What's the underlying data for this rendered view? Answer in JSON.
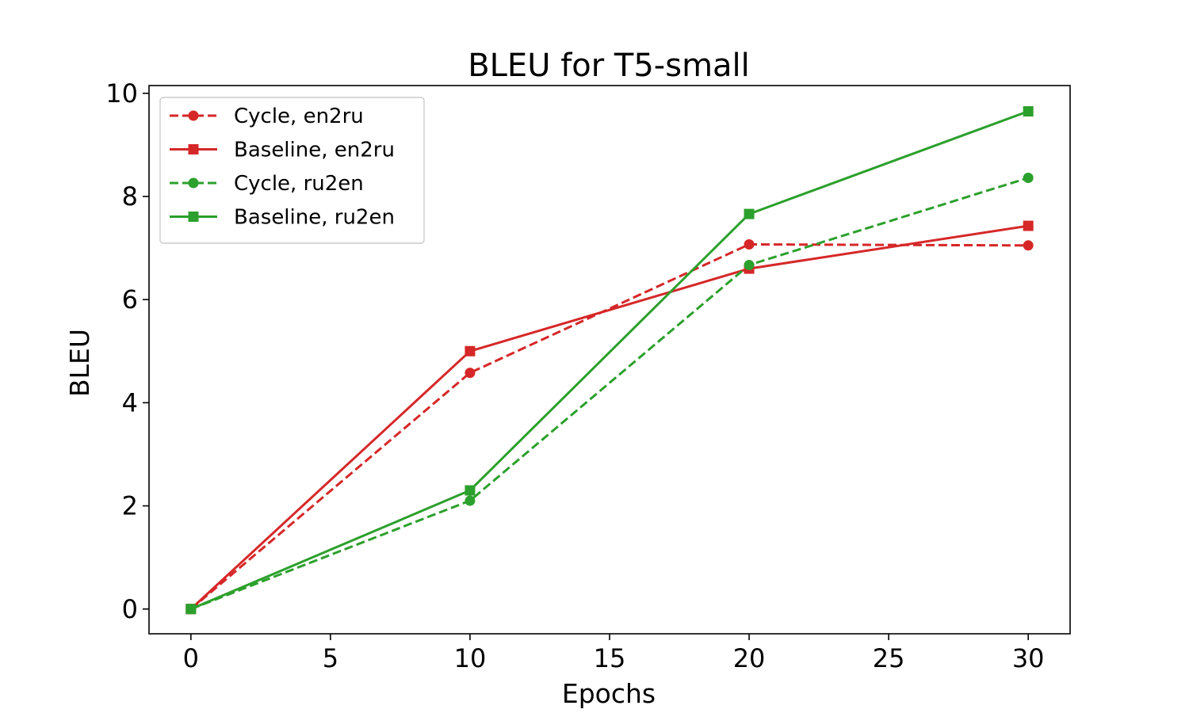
{
  "chart_data": {
    "type": "line",
    "title": "BLEU for T5-small",
    "xlabel": "Epochs",
    "ylabel": "BLEU",
    "xlim": [
      -1.5,
      31.5
    ],
    "ylim": [
      -0.48,
      10.15
    ],
    "xticks": [
      0,
      5,
      10,
      15,
      20,
      25,
      30
    ],
    "yticks": [
      0,
      2,
      4,
      6,
      8,
      10
    ],
    "grid": false,
    "legend": "top-left",
    "x": [
      0,
      10,
      20,
      30
    ],
    "series": [
      {
        "name": "Cycle, en2ru",
        "values": [
          0.0,
          4.58,
          7.07,
          7.05
        ],
        "color": "#d62728",
        "dash": "dashed",
        "marker": "circle"
      },
      {
        "name": "Baseline, en2ru",
        "values": [
          0.0,
          5.0,
          6.6,
          7.43
        ],
        "color": "#d62728",
        "dash": "solid",
        "marker": "square"
      },
      {
        "name": "Cycle, ru2en",
        "values": [
          0.0,
          2.1,
          6.67,
          8.36
        ],
        "color": "#2ca02c",
        "dash": "dashed",
        "marker": "circle"
      },
      {
        "name": "Baseline, ru2en",
        "values": [
          0.0,
          2.3,
          7.66,
          9.65
        ],
        "color": "#2ca02c",
        "dash": "solid",
        "marker": "square"
      }
    ]
  }
}
